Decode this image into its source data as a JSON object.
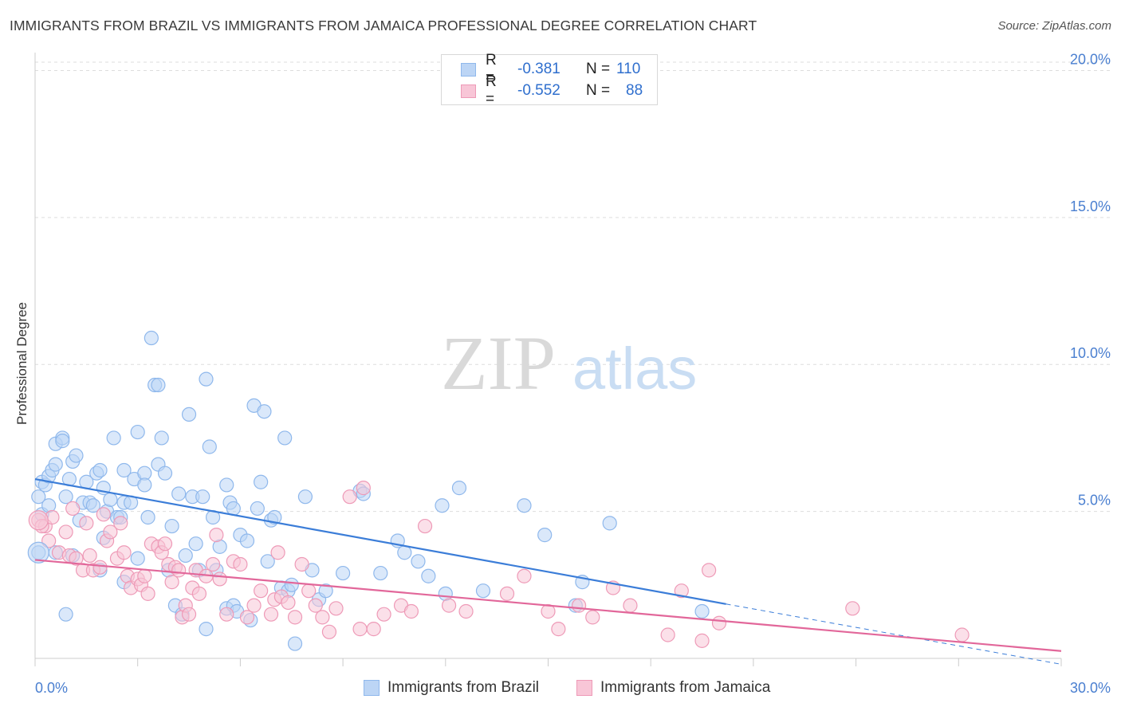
{
  "header": {
    "title": "IMMIGRANTS FROM BRAZIL VS IMMIGRANTS FROM JAMAICA PROFESSIONAL DEGREE CORRELATION CHART",
    "source": "Source: ZipAtlas.com"
  },
  "watermark": {
    "zip": "ZIP",
    "atlas": "atlas"
  },
  "legend": {
    "rows": [
      {
        "r_label": "R =",
        "r_value": "-0.381",
        "n_label": "N =",
        "n_value": "110",
        "color": "#8fb8ec",
        "fill": "#bcd5f5"
      },
      {
        "r_label": "R =",
        "r_value": "-0.552",
        "n_label": "N =",
        "n_value": "88",
        "color": "#ee9ab7",
        "fill": "#f8c6d7"
      }
    ]
  },
  "bottom_legend": {
    "items": [
      {
        "label": "Immigrants from Brazil",
        "color": "#8fb8ec",
        "fill": "#bcd5f5"
      },
      {
        "label": "Immigrants from Jamaica",
        "color": "#ee9ab7",
        "fill": "#f8c6d7"
      }
    ]
  },
  "chart_data": {
    "type": "scatter",
    "title": "IMMIGRANTS FROM BRAZIL VS IMMIGRANTS FROM JAMAICA PROFESSIONAL DEGREE CORRELATION CHART",
    "xlabel": "",
    "ylabel": "Professional Degree",
    "xlim": [
      0,
      30
    ],
    "ylim": [
      0,
      20.5
    ],
    "x_tick_labels": [
      "0.0%",
      "30.0%"
    ],
    "y_ticks": [
      5,
      10,
      15,
      20
    ],
    "y_tick_labels": [
      "5.0%",
      "10.0%",
      "15.0%",
      "20.0%"
    ],
    "grid": true,
    "series": [
      {
        "name": "Immigrants from Brazil",
        "color": "#3b7dd8",
        "point_color": "#8fb8ec",
        "point_fill": "#bcd5f5",
        "r": -0.381,
        "n": 110,
        "trend": {
          "x": [
            0,
            20.2
          ],
          "y": [
            6.1,
            1.85
          ]
        },
        "trend_dashed": {
          "x": [
            20.2,
            30
          ],
          "y": [
            1.85,
            -0.2
          ]
        },
        "points": [
          [
            0.1,
            5.5
          ],
          [
            0.2,
            6.0
          ],
          [
            0.3,
            5.9
          ],
          [
            0.4,
            6.2
          ],
          [
            0.5,
            6.4
          ],
          [
            0.6,
            6.6
          ],
          [
            0.6,
            7.3
          ],
          [
            0.8,
            7.5
          ],
          [
            0.8,
            7.4
          ],
          [
            0.9,
            5.5
          ],
          [
            1.0,
            6.1
          ],
          [
            1.1,
            6.7
          ],
          [
            1.2,
            6.9
          ],
          [
            1.3,
            4.7
          ],
          [
            1.4,
            5.3
          ],
          [
            1.5,
            6.0
          ],
          [
            1.6,
            5.3
          ],
          [
            1.7,
            5.2
          ],
          [
            1.8,
            6.3
          ],
          [
            1.9,
            6.4
          ],
          [
            2.0,
            5.8
          ],
          [
            2.0,
            4.1
          ],
          [
            2.1,
            5.0
          ],
          [
            2.2,
            5.4
          ],
          [
            2.3,
            7.5
          ],
          [
            2.4,
            4.8
          ],
          [
            2.5,
            4.8
          ],
          [
            2.6,
            5.3
          ],
          [
            2.6,
            2.6
          ],
          [
            2.6,
            6.4
          ],
          [
            2.8,
            5.3
          ],
          [
            2.9,
            6.1
          ],
          [
            3.0,
            7.7
          ],
          [
            3.0,
            3.4
          ],
          [
            3.2,
            6.3
          ],
          [
            3.2,
            5.9
          ],
          [
            3.3,
            4.8
          ],
          [
            3.4,
            10.9
          ],
          [
            3.5,
            9.3
          ],
          [
            3.6,
            9.3
          ],
          [
            3.6,
            6.6
          ],
          [
            3.7,
            7.5
          ],
          [
            3.8,
            6.3
          ],
          [
            3.9,
            3.0
          ],
          [
            4.0,
            4.5
          ],
          [
            4.1,
            1.8
          ],
          [
            4.2,
            5.6
          ],
          [
            4.3,
            1.5
          ],
          [
            4.4,
            3.5
          ],
          [
            4.5,
            8.3
          ],
          [
            4.6,
            5.5
          ],
          [
            4.7,
            3.9
          ],
          [
            4.8,
            3.0
          ],
          [
            4.9,
            5.5
          ],
          [
            5.0,
            9.5
          ],
          [
            5.1,
            7.2
          ],
          [
            5.2,
            4.8
          ],
          [
            5.3,
            3.0
          ],
          [
            5.4,
            3.8
          ],
          [
            5.6,
            1.7
          ],
          [
            5.6,
            5.9
          ],
          [
            5.7,
            5.3
          ],
          [
            5.8,
            1.8
          ],
          [
            5.8,
            5.1
          ],
          [
            5.9,
            1.6
          ],
          [
            6.0,
            4.2
          ],
          [
            6.2,
            4.0
          ],
          [
            6.3,
            1.3
          ],
          [
            6.4,
            8.6
          ],
          [
            6.5,
            5.1
          ],
          [
            6.6,
            6.0
          ],
          [
            6.7,
            8.4
          ],
          [
            6.8,
            3.3
          ],
          [
            6.9,
            4.7
          ],
          [
            7.0,
            4.8
          ],
          [
            7.2,
            2.4
          ],
          [
            7.3,
            7.5
          ],
          [
            7.4,
            2.3
          ],
          [
            7.5,
            2.5
          ],
          [
            7.6,
            0.5
          ],
          [
            7.9,
            5.5
          ],
          [
            8.1,
            3.0
          ],
          [
            8.3,
            2.0
          ],
          [
            8.5,
            2.3
          ],
          [
            9.0,
            2.9
          ],
          [
            9.5,
            5.7
          ],
          [
            9.6,
            5.6
          ],
          [
            10.1,
            2.9
          ],
          [
            10.6,
            4.0
          ],
          [
            10.8,
            3.6
          ],
          [
            11.2,
            3.3
          ],
          [
            11.5,
            2.8
          ],
          [
            11.9,
            5.2
          ],
          [
            12.0,
            2.2
          ],
          [
            12.4,
            5.8
          ],
          [
            13.1,
            2.3
          ],
          [
            14.3,
            5.2
          ],
          [
            14.9,
            4.2
          ],
          [
            15.8,
            1.8
          ],
          [
            16.0,
            2.6
          ],
          [
            16.8,
            4.6
          ],
          [
            19.5,
            1.6
          ],
          [
            0.1,
            3.6
          ],
          [
            0.2,
            4.9
          ],
          [
            0.6,
            3.6
          ],
          [
            1.1,
            3.5
          ],
          [
            1.9,
            3.0
          ],
          [
            0.9,
            1.5
          ],
          [
            5.0,
            1.0
          ],
          [
            0.4,
            5.2
          ]
        ]
      },
      {
        "name": "Immigrants from Jamaica",
        "color": "#e2679a",
        "point_color": "#ee9ab7",
        "point_fill": "#f8c6d7",
        "r": -0.552,
        "n": 88,
        "trend": {
          "x": [
            0,
            30
          ],
          "y": [
            3.35,
            0.25
          ]
        },
        "points": [
          [
            0.1,
            4.7
          ],
          [
            0.3,
            4.5
          ],
          [
            0.4,
            4.0
          ],
          [
            0.5,
            4.8
          ],
          [
            0.7,
            3.6
          ],
          [
            0.9,
            4.3
          ],
          [
            1.0,
            3.5
          ],
          [
            1.1,
            5.1
          ],
          [
            1.2,
            3.4
          ],
          [
            1.4,
            3.0
          ],
          [
            1.5,
            4.6
          ],
          [
            1.6,
            3.5
          ],
          [
            1.7,
            3.0
          ],
          [
            1.9,
            3.1
          ],
          [
            2.0,
            4.9
          ],
          [
            2.1,
            4.0
          ],
          [
            2.2,
            4.3
          ],
          [
            2.4,
            3.4
          ],
          [
            2.5,
            4.6
          ],
          [
            2.6,
            3.6
          ],
          [
            2.7,
            2.8
          ],
          [
            2.8,
            2.4
          ],
          [
            3.0,
            2.7
          ],
          [
            3.1,
            2.5
          ],
          [
            3.2,
            2.8
          ],
          [
            3.3,
            2.2
          ],
          [
            3.4,
            3.9
          ],
          [
            3.6,
            3.8
          ],
          [
            3.7,
            3.6
          ],
          [
            3.8,
            3.9
          ],
          [
            3.9,
            3.2
          ],
          [
            4.0,
            2.6
          ],
          [
            4.1,
            3.1
          ],
          [
            4.2,
            3.0
          ],
          [
            4.3,
            1.4
          ],
          [
            4.4,
            1.8
          ],
          [
            4.5,
            1.5
          ],
          [
            4.6,
            2.4
          ],
          [
            4.7,
            3.0
          ],
          [
            4.8,
            2.2
          ],
          [
            5.0,
            2.8
          ],
          [
            5.2,
            3.2
          ],
          [
            5.3,
            4.2
          ],
          [
            5.4,
            2.7
          ],
          [
            5.6,
            1.5
          ],
          [
            5.8,
            3.3
          ],
          [
            6.0,
            3.2
          ],
          [
            6.2,
            1.4
          ],
          [
            6.4,
            1.8
          ],
          [
            6.6,
            2.3
          ],
          [
            6.9,
            1.5
          ],
          [
            7.0,
            2.0
          ],
          [
            7.1,
            3.6
          ],
          [
            7.2,
            2.1
          ],
          [
            7.4,
            1.9
          ],
          [
            7.6,
            1.4
          ],
          [
            7.8,
            3.2
          ],
          [
            8.0,
            2.3
          ],
          [
            8.2,
            1.8
          ],
          [
            8.4,
            1.4
          ],
          [
            8.6,
            0.9
          ],
          [
            8.8,
            1.7
          ],
          [
            9.2,
            5.5
          ],
          [
            9.5,
            1.0
          ],
          [
            9.6,
            5.8
          ],
          [
            9.9,
            1.0
          ],
          [
            10.2,
            1.5
          ],
          [
            10.7,
            1.8
          ],
          [
            11.0,
            1.6
          ],
          [
            11.4,
            4.5
          ],
          [
            12.1,
            1.8
          ],
          [
            12.6,
            1.6
          ],
          [
            13.8,
            2.2
          ],
          [
            14.3,
            2.8
          ],
          [
            15.0,
            1.6
          ],
          [
            15.3,
            1.0
          ],
          [
            15.9,
            1.8
          ],
          [
            16.3,
            1.4
          ],
          [
            16.9,
            2.4
          ],
          [
            17.4,
            1.8
          ],
          [
            18.5,
            0.8
          ],
          [
            18.9,
            2.3
          ],
          [
            19.5,
            0.6
          ],
          [
            19.7,
            3.0
          ],
          [
            20.0,
            1.2
          ],
          [
            23.9,
            1.7
          ],
          [
            27.1,
            0.8
          ],
          [
            0.2,
            4.5
          ]
        ]
      }
    ]
  }
}
